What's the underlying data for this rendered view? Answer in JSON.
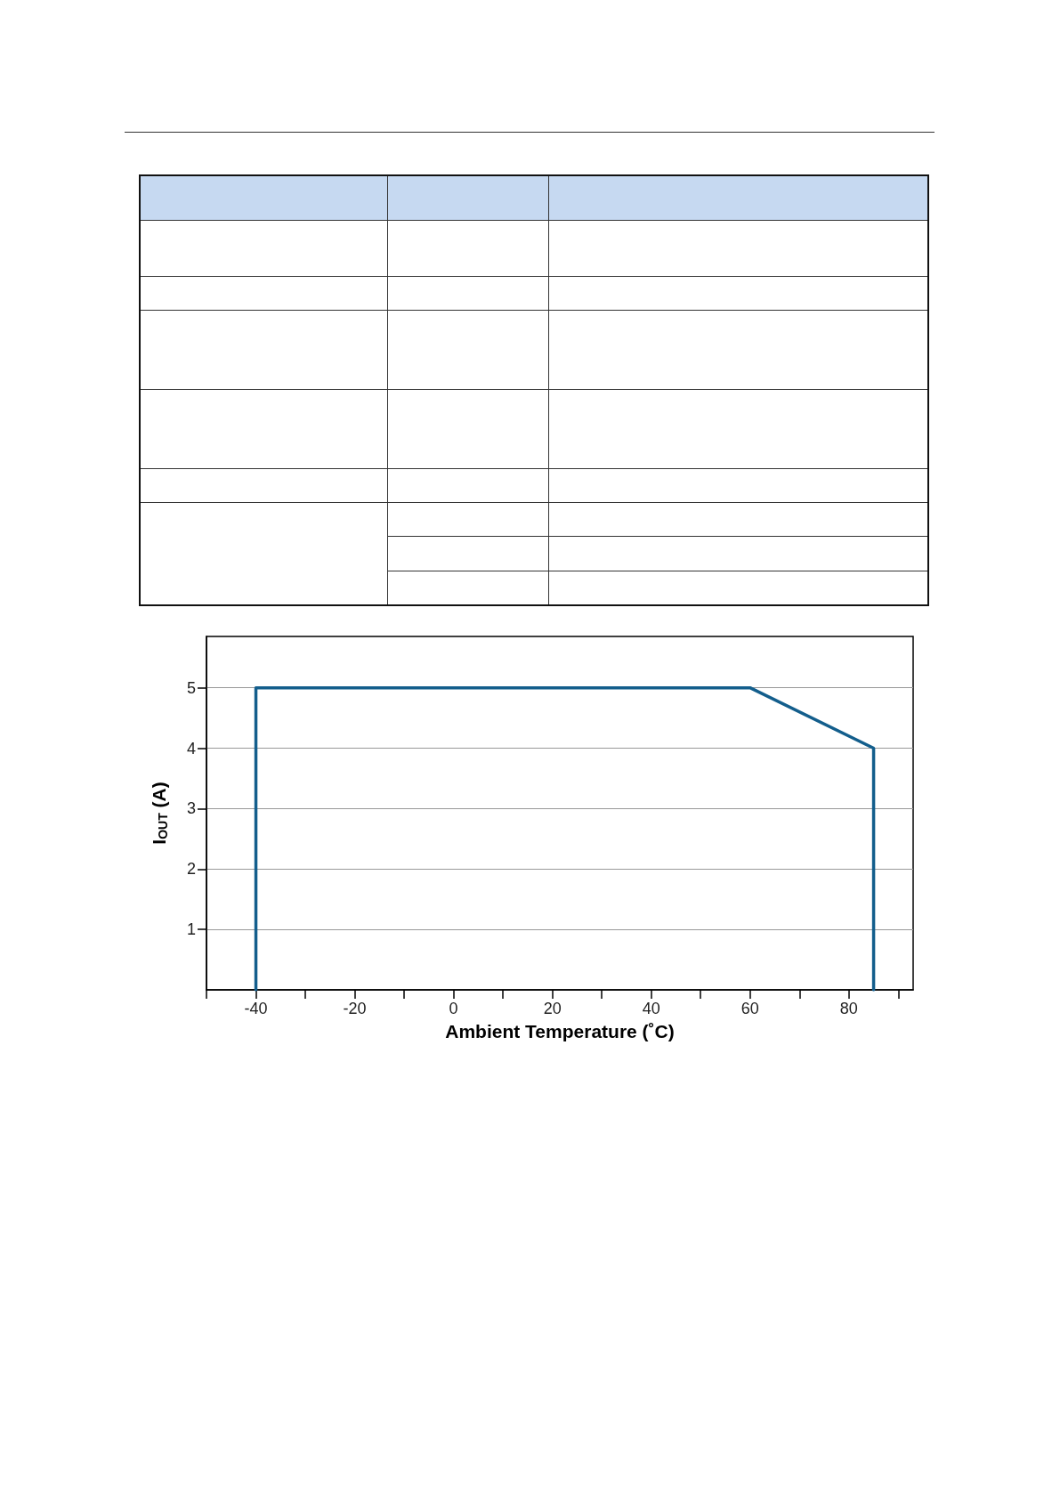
{
  "chart_data": {
    "type": "line",
    "xlabel": "Ambient Temperature (˚C)",
    "ylabel": "I$_{OUT}$ (A)",
    "x": [
      -40,
      -40,
      60,
      85,
      85
    ],
    "series": [
      {
        "color": "#135e8c",
        "values": [
          0,
          5,
          5,
          4,
          0
        ]
      }
    ],
    "xlim": [
      -50,
      93
    ],
    "ylim": [
      0,
      5.85
    ],
    "xticks": [
      {
        "value": -50,
        "label": null
      },
      -40,
      {
        "value": -30,
        "label": null
      },
      -20,
      {
        "value": -10,
        "label": null
      },
      0,
      {
        "value": 10,
        "label": null
      },
      20,
      {
        "value": 30,
        "label": null
      },
      40,
      {
        "value": 50,
        "label": null
      },
      60,
      {
        "value": 70,
        "label": null
      },
      80,
      {
        "value": 90,
        "label": null
      }
    ],
    "yticks": [
      1,
      2,
      3,
      4,
      5
    ],
    "grid": "y",
    "marker": "none",
    "line_style": "solid"
  }
}
